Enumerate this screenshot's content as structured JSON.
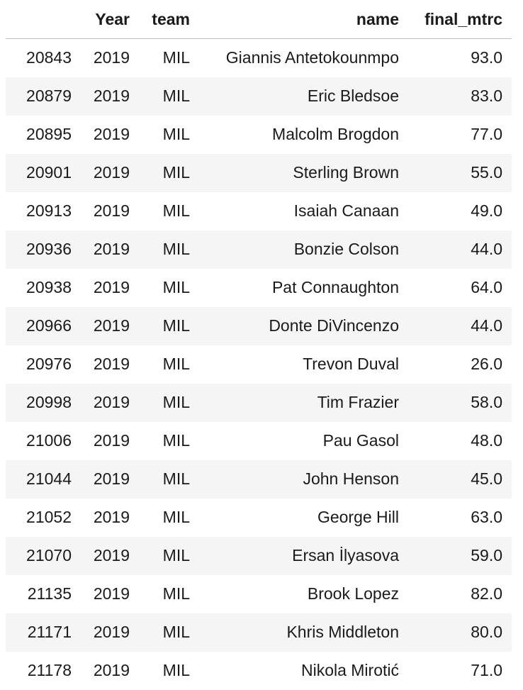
{
  "columns": {
    "index": "",
    "year": "Year",
    "team": "team",
    "name": "name",
    "final_mtrc": "final_mtrc"
  },
  "rows": [
    {
      "index": "20843",
      "year": "2019",
      "team": "MIL",
      "name": "Giannis Antetokounmpo",
      "final_mtrc": "93.0"
    },
    {
      "index": "20879",
      "year": "2019",
      "team": "MIL",
      "name": "Eric Bledsoe",
      "final_mtrc": "83.0"
    },
    {
      "index": "20895",
      "year": "2019",
      "team": "MIL",
      "name": "Malcolm Brogdon",
      "final_mtrc": "77.0"
    },
    {
      "index": "20901",
      "year": "2019",
      "team": "MIL",
      "name": "Sterling Brown",
      "final_mtrc": "55.0"
    },
    {
      "index": "20913",
      "year": "2019",
      "team": "MIL",
      "name": "Isaiah Canaan",
      "final_mtrc": "49.0"
    },
    {
      "index": "20936",
      "year": "2019",
      "team": "MIL",
      "name": "Bonzie Colson",
      "final_mtrc": "44.0"
    },
    {
      "index": "20938",
      "year": "2019",
      "team": "MIL",
      "name": "Pat Connaughton",
      "final_mtrc": "64.0"
    },
    {
      "index": "20966",
      "year": "2019",
      "team": "MIL",
      "name": "Donte DiVincenzo",
      "final_mtrc": "44.0"
    },
    {
      "index": "20976",
      "year": "2019",
      "team": "MIL",
      "name": "Trevon Duval",
      "final_mtrc": "26.0"
    },
    {
      "index": "20998",
      "year": "2019",
      "team": "MIL",
      "name": "Tim Frazier",
      "final_mtrc": "58.0"
    },
    {
      "index": "21006",
      "year": "2019",
      "team": "MIL",
      "name": "Pau Gasol",
      "final_mtrc": "48.0"
    },
    {
      "index": "21044",
      "year": "2019",
      "team": "MIL",
      "name": "John Henson",
      "final_mtrc": "45.0"
    },
    {
      "index": "21052",
      "year": "2019",
      "team": "MIL",
      "name": "George Hill",
      "final_mtrc": "63.0"
    },
    {
      "index": "21070",
      "year": "2019",
      "team": "MIL",
      "name": "Ersan İlyasova",
      "final_mtrc": "59.0"
    },
    {
      "index": "21135",
      "year": "2019",
      "team": "MIL",
      "name": "Brook Lopez",
      "final_mtrc": "82.0"
    },
    {
      "index": "21171",
      "year": "2019",
      "team": "MIL",
      "name": "Khris Middleton",
      "final_mtrc": "80.0"
    },
    {
      "index": "21178",
      "year": "2019",
      "team": "MIL",
      "name": "Nikola Mirotić",
      "final_mtrc": "71.0"
    }
  ]
}
